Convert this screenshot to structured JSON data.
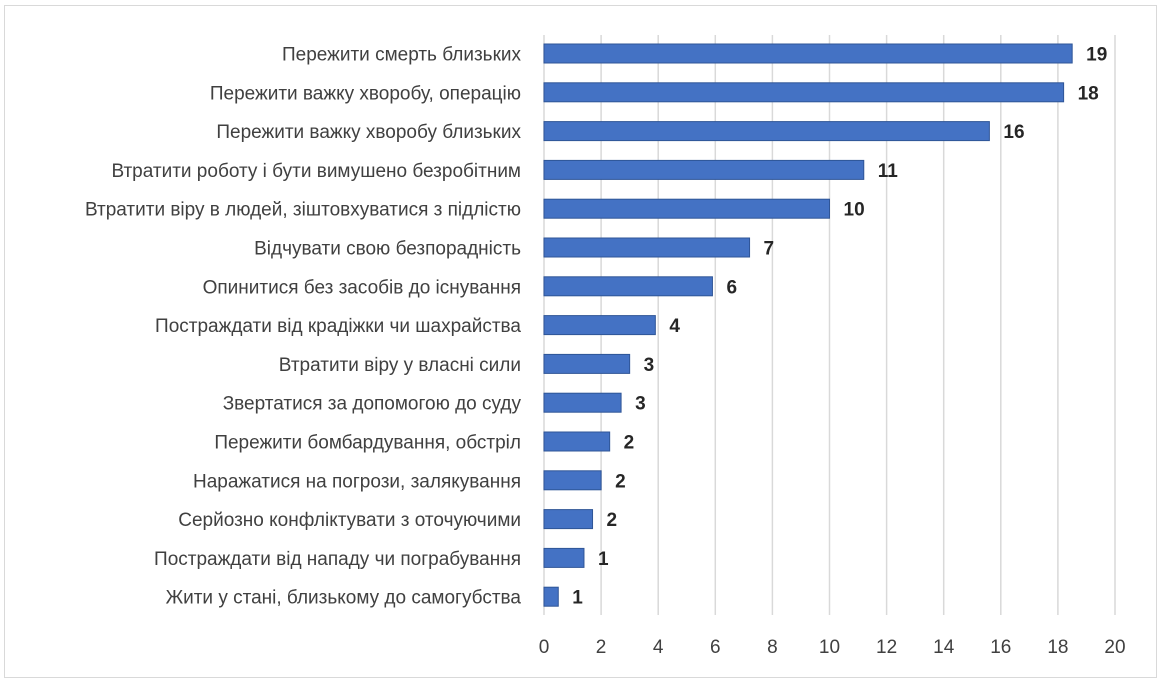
{
  "chart_data": {
    "type": "bar",
    "orientation": "horizontal",
    "categories": [
      "Пережити смерть близьких",
      "Пережити важку хворобу, операцію",
      "Пережити важку хворобу близьких",
      "Втратити роботу і бути вимушено безробітним",
      "Втратити віру в людей, зіштовхуватися з підлістю",
      "Відчувати свою безпорадність",
      "Опинитися без засобів до існування",
      "Постраждати від крадіжки чи шахрайства",
      "Втратити віру у власні сили",
      "Звертатися за допомогою до суду",
      "Пережити бомбардування, обстріл",
      "Наражатися на погрози, залякування",
      "Серйозно конфліктувати з оточуючими",
      "Постраждати від нападу чи пограбування",
      "Жити у стані, близькому до самогубства"
    ],
    "values": [
      18.5,
      18.2,
      15.6,
      11.2,
      10.0,
      7.2,
      5.9,
      3.9,
      3.0,
      2.7,
      2.3,
      2.0,
      1.7,
      1.4,
      0.5
    ],
    "data_labels": [
      "19",
      "18",
      "16",
      "11",
      "10",
      "7",
      "6",
      "4",
      "3",
      "3",
      "2",
      "2",
      "2",
      "1",
      "1"
    ],
    "xlim": [
      0,
      20
    ],
    "x_ticks": [
      "0",
      "2",
      "4",
      "6",
      "8",
      "10",
      "12",
      "14",
      "16",
      "18",
      "20"
    ],
    "grid": true,
    "colors": {
      "bar": "#4472c4",
      "grid": "#d9d9d9"
    }
  }
}
